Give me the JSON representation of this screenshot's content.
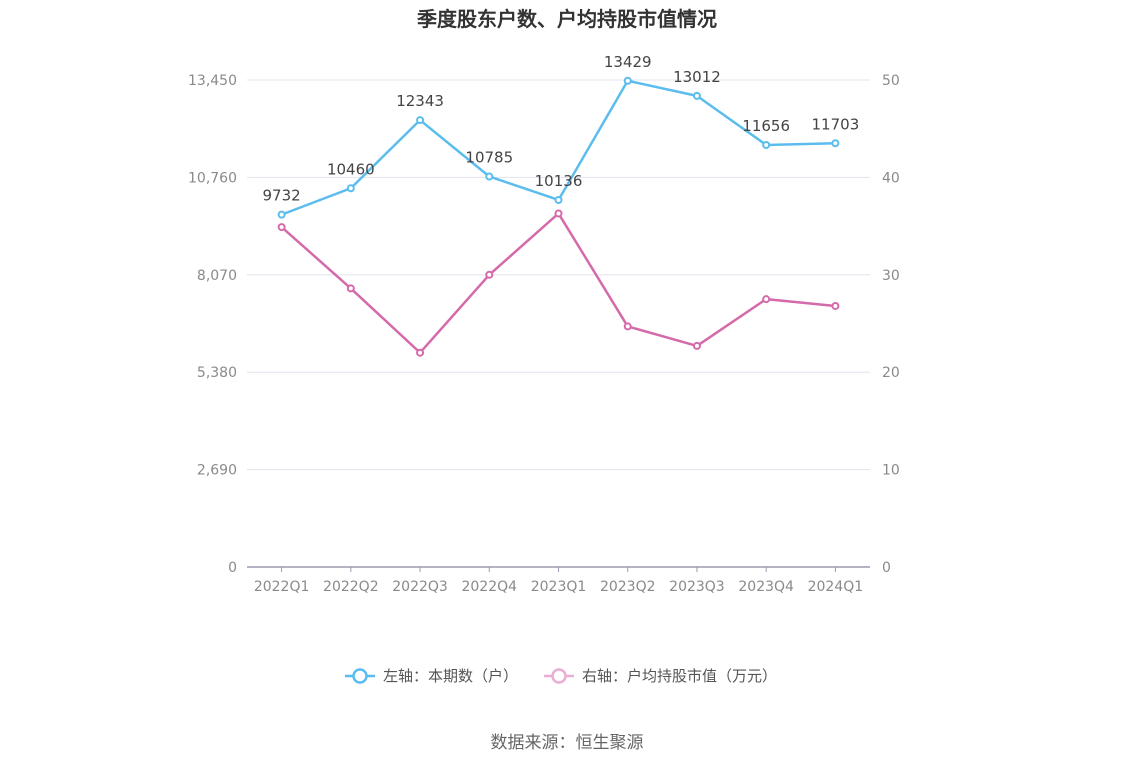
{
  "chart_data": {
    "type": "line",
    "title": "季度股东户数、户均持股市值情况",
    "categories": [
      "2022Q1",
      "2022Q2",
      "2022Q3",
      "2022Q4",
      "2023Q1",
      "2023Q2",
      "2023Q3",
      "2023Q4",
      "2024Q1"
    ],
    "series": [
      {
        "name": "左轴：本期数（户）",
        "axis": "left",
        "color": "#5bbdee",
        "values": [
          9732,
          10460,
          12343,
          10785,
          10136,
          13429,
          13012,
          11656,
          11703
        ],
        "labels": [
          "9732",
          "10460",
          "12343",
          "10785",
          "10136",
          "13429",
          "13012",
          "11656",
          "11703"
        ]
      },
      {
        "name": "右轴：户均持股市值（万元）",
        "axis": "right",
        "color": "#d56aab",
        "values": [
          34.9,
          28.6,
          22.0,
          30.0,
          36.3,
          24.7,
          22.7,
          27.5,
          26.8
        ]
      }
    ],
    "y_left": {
      "ticks": [
        "0",
        "2,690",
        "5,380",
        "8,070",
        "10,760",
        "13,450"
      ],
      "range": [
        0,
        13450
      ]
    },
    "y_right": {
      "ticks": [
        "0",
        "10",
        "20",
        "30",
        "40",
        "50"
      ],
      "range": [
        0,
        50
      ]
    },
    "grid": true,
    "legend_position": "bottom"
  },
  "source": "数据来源：恒生聚源"
}
